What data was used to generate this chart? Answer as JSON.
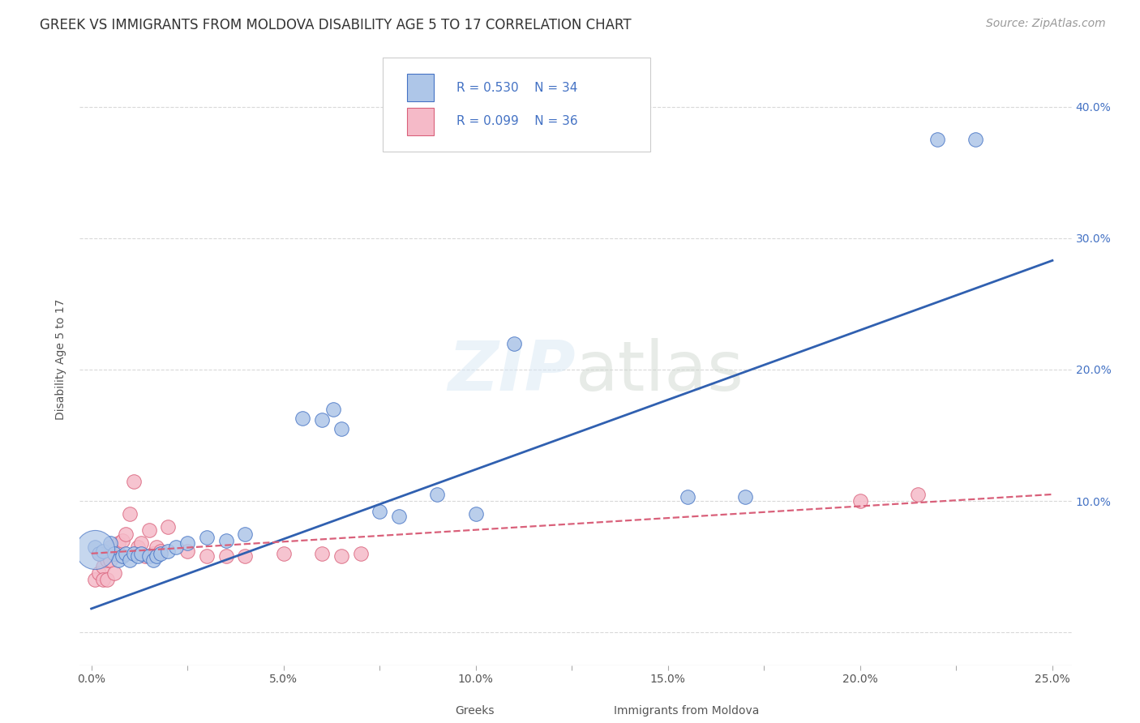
{
  "title": "GREEK VS IMMIGRANTS FROM MOLDOVA DISABILITY AGE 5 TO 17 CORRELATION CHART",
  "source": "Source: ZipAtlas.com",
  "ylabel": "Disability Age 5 to 17",
  "x_tick_labels": [
    "0.0%",
    "",
    "5.0%",
    "",
    "10.0%",
    "",
    "15.0%",
    "",
    "20.0%",
    "",
    "25.0%"
  ],
  "x_tick_vals": [
    0.0,
    0.025,
    0.05,
    0.075,
    0.1,
    0.125,
    0.15,
    0.175,
    0.2,
    0.225,
    0.25
  ],
  "y_tick_labels": [
    "",
    "10.0%",
    "20.0%",
    "30.0%",
    "40.0%"
  ],
  "y_tick_vals": [
    0.0,
    0.1,
    0.2,
    0.3,
    0.4
  ],
  "xlim": [
    -0.003,
    0.255
  ],
  "ylim": [
    -0.025,
    0.44
  ],
  "watermark": "ZIPatlas",
  "background_color": "#ffffff",
  "grid_color": "#d0d0d0",
  "greeks_x": [
    0.001,
    0.002,
    0.003,
    0.005,
    0.006,
    0.007,
    0.008,
    0.009,
    0.01,
    0.011,
    0.012,
    0.013,
    0.015,
    0.016,
    0.017,
    0.018,
    0.02,
    0.022,
    0.025,
    0.03,
    0.035,
    0.04,
    0.055,
    0.06,
    0.063,
    0.065,
    0.075,
    0.08,
    0.09,
    0.1,
    0.11,
    0.155,
    0.17,
    0.22,
    0.23
  ],
  "greeks_y": [
    0.065,
    0.06,
    0.062,
    0.068,
    0.06,
    0.055,
    0.058,
    0.06,
    0.055,
    0.06,
    0.058,
    0.06,
    0.058,
    0.055,
    0.058,
    0.06,
    0.062,
    0.065,
    0.068,
    0.072,
    0.07,
    0.075,
    0.163,
    0.162,
    0.17,
    0.155,
    0.092,
    0.088,
    0.105,
    0.09,
    0.22,
    0.103,
    0.103,
    0.375,
    0.375
  ],
  "moldova_x": [
    0.001,
    0.002,
    0.002,
    0.003,
    0.003,
    0.004,
    0.004,
    0.005,
    0.005,
    0.006,
    0.006,
    0.007,
    0.007,
    0.008,
    0.008,
    0.009,
    0.01,
    0.011,
    0.012,
    0.013,
    0.014,
    0.015,
    0.016,
    0.017,
    0.018,
    0.02,
    0.025,
    0.03,
    0.035,
    0.04,
    0.05,
    0.06,
    0.065,
    0.07,
    0.2,
    0.215
  ],
  "moldova_y": [
    0.04,
    0.06,
    0.045,
    0.05,
    0.04,
    0.055,
    0.04,
    0.065,
    0.055,
    0.06,
    0.045,
    0.06,
    0.068,
    0.07,
    0.058,
    0.075,
    0.09,
    0.115,
    0.065,
    0.068,
    0.058,
    0.078,
    0.06,
    0.065,
    0.062,
    0.08,
    0.062,
    0.058,
    0.058,
    0.058,
    0.06,
    0.06,
    0.058,
    0.06,
    0.1,
    0.105
  ],
  "greek_color": "#aec6e8",
  "greek_edge_color": "#4472c4",
  "moldova_color": "#f5bac8",
  "moldova_edge_color": "#d9607a",
  "greek_line_color": "#3060b0",
  "moldova_line_color": "#d9607a",
  "title_fontsize": 12,
  "axis_label_fontsize": 10,
  "tick_fontsize": 10,
  "source_fontsize": 10
}
